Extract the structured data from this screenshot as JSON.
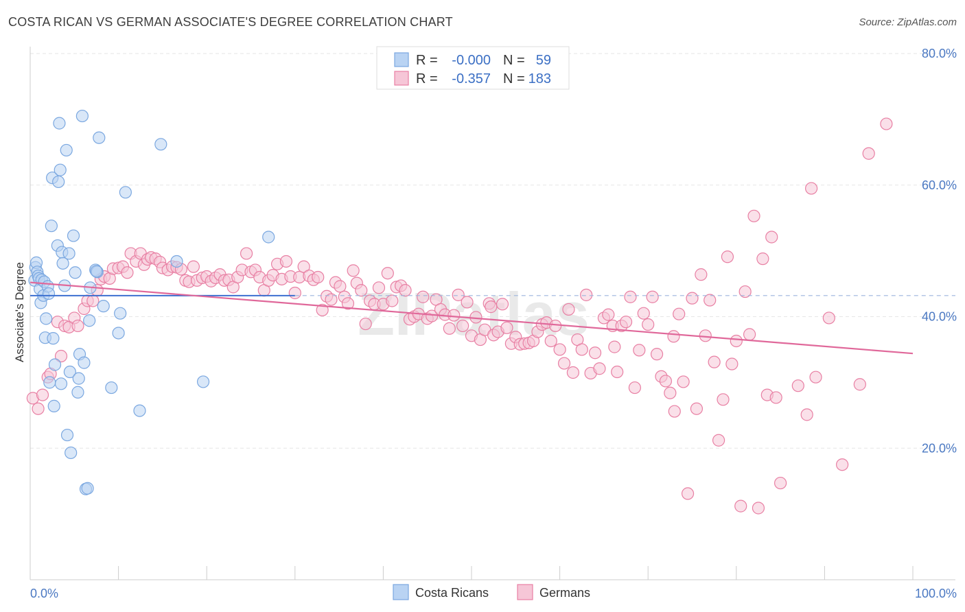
{
  "title": "COSTA RICAN VS GERMAN ASSOCIATE'S DEGREE CORRELATION CHART",
  "source": "Source: ZipAtlas.com",
  "watermark": "ZIPatlas",
  "colors": {
    "blue": "#7aa7e0",
    "blue_fill": "#b9d3f3",
    "pink": "#e87fa3",
    "pink_fill": "#f6c6d7",
    "blue_line": "#3b6fd0",
    "pink_line": "#e0689a",
    "tick_label": "#4a78c2"
  },
  "legend": {
    "r_label": "R =",
    "n_label": "N =",
    "rows": [
      {
        "series": "Costa Ricans",
        "r": "-0.000",
        "n": "59"
      },
      {
        "series": "Germans",
        "r": "-0.357",
        "n": "183"
      }
    ]
  },
  "chart_data": {
    "type": "scatter",
    "title": "COSTA RICAN VS GERMAN ASSOCIATE'S DEGREE CORRELATION CHART",
    "xlabel": "",
    "ylabel": "Associate's Degree",
    "xlim": [
      0,
      100
    ],
    "ylim": [
      0,
      85
    ],
    "x_tick_labels": [
      "0.0%",
      "100.0%"
    ],
    "y_ticks": [
      20,
      40,
      60,
      80
    ],
    "y_tick_labels": [
      "20.0%",
      "40.0%",
      "60.0%",
      "80.0%"
    ],
    "grid": true,
    "legend_position": "top-center",
    "series": [
      {
        "name": "Costa Ricans",
        "trend": {
          "x": [
            0,
            30
          ],
          "y": [
            43.2,
            43.2
          ],
          "dashed_extension_to": 100
        },
        "points": [
          [
            0.5,
            45.5
          ],
          [
            0.6,
            47.5
          ],
          [
            0.7,
            48.2
          ],
          [
            0.8,
            46.8
          ],
          [
            0.9,
            46.2
          ],
          [
            1.0,
            45.8
          ],
          [
            1.1,
            44.2
          ],
          [
            1.2,
            42.1
          ],
          [
            1.3,
            45.6
          ],
          [
            1.5,
            43.2
          ],
          [
            1.6,
            45.3
          ],
          [
            1.7,
            36.8
          ],
          [
            1.8,
            39.7
          ],
          [
            2.0,
            44.6
          ],
          [
            2.1,
            43.5
          ],
          [
            2.2,
            30.0
          ],
          [
            2.4,
            53.8
          ],
          [
            2.5,
            61.1
          ],
          [
            2.6,
            36.7
          ],
          [
            2.7,
            26.4
          ],
          [
            2.8,
            32.7
          ],
          [
            3.1,
            50.8
          ],
          [
            3.2,
            60.5
          ],
          [
            3.3,
            69.4
          ],
          [
            3.4,
            62.3
          ],
          [
            3.5,
            29.8
          ],
          [
            3.6,
            49.8
          ],
          [
            3.7,
            48.1
          ],
          [
            3.9,
            44.7
          ],
          [
            4.1,
            65.3
          ],
          [
            4.2,
            22.0
          ],
          [
            4.4,
            49.6
          ],
          [
            4.5,
            31.6
          ],
          [
            4.6,
            19.3
          ],
          [
            4.9,
            52.3
          ],
          [
            5.1,
            46.7
          ],
          [
            5.4,
            28.5
          ],
          [
            5.5,
            30.6
          ],
          [
            5.6,
            34.3
          ],
          [
            5.9,
            70.5
          ],
          [
            6.1,
            33.0
          ],
          [
            6.3,
            13.8
          ],
          [
            6.5,
            13.9
          ],
          [
            6.7,
            39.4
          ],
          [
            6.8,
            44.4
          ],
          [
            7.4,
            47.1
          ],
          [
            7.6,
            46.8
          ],
          [
            7.8,
            67.2
          ],
          [
            8.3,
            41.6
          ],
          [
            9.2,
            29.2
          ],
          [
            10.0,
            37.5
          ],
          [
            10.2,
            40.5
          ],
          [
            10.8,
            58.9
          ],
          [
            12.4,
            25.7
          ],
          [
            14.8,
            66.2
          ],
          [
            16.6,
            48.4
          ],
          [
            19.6,
            30.1
          ],
          [
            27.0,
            52.1
          ],
          [
            7.5,
            46.9
          ]
        ]
      },
      {
        "name": "Germans",
        "trend": {
          "x": [
            0,
            100
          ],
          "y": [
            45.2,
            34.4
          ]
        },
        "points": [
          [
            0.3,
            27.6
          ],
          [
            0.9,
            26.0
          ],
          [
            1.4,
            28.1
          ],
          [
            2.0,
            30.8
          ],
          [
            2.3,
            31.3
          ],
          [
            3.1,
            39.2
          ],
          [
            3.5,
            34.0
          ],
          [
            3.9,
            38.6
          ],
          [
            4.4,
            38.4
          ],
          [
            5.0,
            39.8
          ],
          [
            5.4,
            38.6
          ],
          [
            6.1,
            41.2
          ],
          [
            6.5,
            42.4
          ],
          [
            7.1,
            42.4
          ],
          [
            7.6,
            44.0
          ],
          [
            8.0,
            45.7
          ],
          [
            8.4,
            46.1
          ],
          [
            9.0,
            45.8
          ],
          [
            9.4,
            47.3
          ],
          [
            10.0,
            47.4
          ],
          [
            10.5,
            47.6
          ],
          [
            11.0,
            46.7
          ],
          [
            11.4,
            49.6
          ],
          [
            12.0,
            48.4
          ],
          [
            12.5,
            49.6
          ],
          [
            12.9,
            47.9
          ],
          [
            13.3,
            48.7
          ],
          [
            13.7,
            49.0
          ],
          [
            14.2,
            48.8
          ],
          [
            14.7,
            48.3
          ],
          [
            15.0,
            47.4
          ],
          [
            15.6,
            47.1
          ],
          [
            16.1,
            47.6
          ],
          [
            16.6,
            47.5
          ],
          [
            17.1,
            47.2
          ],
          [
            17.6,
            45.5
          ],
          [
            18.0,
            45.3
          ],
          [
            18.5,
            47.6
          ],
          [
            18.9,
            45.5
          ],
          [
            19.5,
            45.9
          ],
          [
            20.0,
            46.1
          ],
          [
            20.5,
            45.4
          ],
          [
            21.0,
            45.9
          ],
          [
            21.5,
            46.4
          ],
          [
            22.0,
            45.5
          ],
          [
            22.5,
            45.6
          ],
          [
            23.0,
            44.5
          ],
          [
            23.5,
            46.0
          ],
          [
            24.0,
            47.1
          ],
          [
            24.5,
            49.6
          ],
          [
            25.0,
            46.8
          ],
          [
            25.5,
            47.1
          ],
          [
            26.0,
            46.0
          ],
          [
            26.5,
            44.0
          ],
          [
            27.0,
            45.5
          ],
          [
            27.5,
            46.3
          ],
          [
            28.0,
            48.0
          ],
          [
            28.5,
            45.7
          ],
          [
            29.0,
            48.4
          ],
          [
            29.5,
            46.1
          ],
          [
            30.0,
            43.6
          ],
          [
            30.5,
            46.0
          ],
          [
            31.0,
            47.6
          ],
          [
            31.6,
            46.2
          ],
          [
            32.1,
            45.6
          ],
          [
            32.6,
            46.0
          ],
          [
            33.1,
            41.0
          ],
          [
            33.6,
            43.1
          ],
          [
            34.1,
            42.6
          ],
          [
            34.6,
            45.2
          ],
          [
            35.1,
            44.6
          ],
          [
            35.6,
            43.0
          ],
          [
            36.0,
            42.0
          ],
          [
            36.6,
            47.0
          ],
          [
            37.0,
            45.1
          ],
          [
            37.5,
            44.0
          ],
          [
            38.0,
            38.9
          ],
          [
            38.5,
            42.4
          ],
          [
            39.0,
            41.9
          ],
          [
            39.5,
            44.4
          ],
          [
            40.0,
            41.9
          ],
          [
            40.5,
            46.6
          ],
          [
            41.0,
            42.4
          ],
          [
            41.5,
            44.5
          ],
          [
            42.0,
            44.7
          ],
          [
            42.5,
            44.0
          ],
          [
            43.0,
            39.6
          ],
          [
            43.5,
            40.0
          ],
          [
            44.0,
            40.4
          ],
          [
            44.5,
            43.0
          ],
          [
            45.0,
            39.7
          ],
          [
            45.5,
            40.1
          ],
          [
            46.0,
            42.6
          ],
          [
            46.5,
            41.1
          ],
          [
            47.0,
            40.3
          ],
          [
            47.5,
            38.2
          ],
          [
            48.0,
            40.2
          ],
          [
            48.5,
            43.3
          ],
          [
            49.0,
            38.6
          ],
          [
            49.5,
            42.2
          ],
          [
            50.0,
            37.1
          ],
          [
            50.5,
            39.9
          ],
          [
            51.0,
            36.5
          ],
          [
            51.5,
            38.0
          ],
          [
            52.0,
            42.0
          ],
          [
            52.5,
            37.2
          ],
          [
            53.0,
            37.7
          ],
          [
            53.5,
            41.9
          ],
          [
            54.0,
            38.3
          ],
          [
            54.5,
            35.9
          ],
          [
            55.0,
            36.9
          ],
          [
            55.5,
            35.8
          ],
          [
            56.0,
            35.9
          ],
          [
            56.5,
            36.0
          ],
          [
            57.0,
            36.3
          ],
          [
            57.5,
            37.7
          ],
          [
            58.0,
            38.8
          ],
          [
            58.5,
            39.1
          ],
          [
            59.0,
            36.3
          ],
          [
            59.5,
            38.6
          ],
          [
            60.0,
            35.0
          ],
          [
            60.5,
            32.9
          ],
          [
            61.0,
            41.1
          ],
          [
            61.5,
            31.5
          ],
          [
            62.0,
            36.5
          ],
          [
            62.5,
            35.0
          ],
          [
            63.0,
            43.3
          ],
          [
            63.5,
            31.4
          ],
          [
            64.0,
            34.5
          ],
          [
            64.5,
            32.1
          ],
          [
            65.0,
            39.8
          ],
          [
            65.5,
            40.3
          ],
          [
            66.0,
            38.6
          ],
          [
            66.5,
            31.6
          ],
          [
            67.0,
            38.6
          ],
          [
            67.5,
            39.2
          ],
          [
            68.0,
            43.0
          ],
          [
            68.5,
            29.2
          ],
          [
            69.0,
            34.9
          ],
          [
            69.5,
            40.5
          ],
          [
            70.0,
            38.8
          ],
          [
            70.5,
            43.0
          ],
          [
            71.0,
            34.3
          ],
          [
            71.5,
            30.9
          ],
          [
            72.0,
            30.2
          ],
          [
            72.5,
            28.4
          ],
          [
            73.0,
            25.6
          ],
          [
            73.5,
            40.4
          ],
          [
            74.0,
            30.1
          ],
          [
            74.5,
            13.1
          ],
          [
            75.0,
            42.8
          ],
          [
            75.5,
            26.0
          ],
          [
            76.0,
            46.4
          ],
          [
            76.5,
            37.1
          ],
          [
            77.0,
            42.5
          ],
          [
            77.5,
            33.1
          ],
          [
            78.0,
            21.2
          ],
          [
            78.5,
            27.4
          ],
          [
            79.0,
            49.1
          ],
          [
            79.5,
            32.8
          ],
          [
            80.0,
            36.3
          ],
          [
            80.5,
            11.2
          ],
          [
            81.0,
            43.8
          ],
          [
            81.5,
            37.3
          ],
          [
            82.0,
            55.3
          ],
          [
            82.5,
            10.9
          ],
          [
            83.0,
            48.8
          ],
          [
            83.5,
            28.1
          ],
          [
            84.0,
            52.1
          ],
          [
            84.5,
            27.7
          ],
          [
            85.0,
            14.7
          ],
          [
            87.0,
            29.5
          ],
          [
            88.0,
            25.1
          ],
          [
            88.5,
            59.5
          ],
          [
            89.0,
            30.8
          ],
          [
            90.5,
            39.8
          ],
          [
            92.0,
            17.5
          ],
          [
            95.0,
            64.8
          ],
          [
            97.0,
            69.3
          ],
          [
            94.0,
            29.7
          ],
          [
            52.2,
            41.5
          ],
          [
            66.2,
            35.4
          ],
          [
            72.9,
            37.0
          ]
        ]
      }
    ]
  },
  "bottom_legend": [
    "Costa Ricans",
    "Germans"
  ]
}
